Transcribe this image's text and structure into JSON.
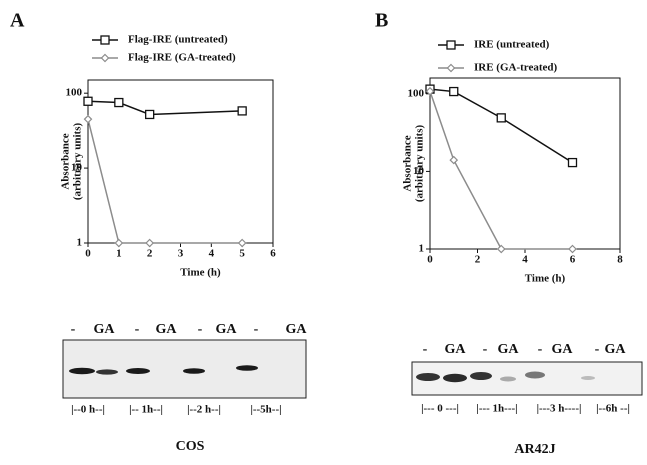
{
  "chart_data": [
    {
      "type": "line",
      "xlabel": "Time (h)",
      "ylabel": [
        "Absorbance",
        "(arbitrary units)"
      ],
      "x": [
        0,
        1,
        2,
        5
      ],
      "xlim": [
        0,
        6
      ],
      "xticks": [
        0,
        1,
        2,
        3,
        4,
        5,
        6
      ],
      "ylim": [
        1,
        150
      ],
      "yticks": [
        1,
        10,
        100
      ],
      "log_y": true,
      "series": [
        {
          "name": "Flag-IRE (untreated)",
          "color": "#111111",
          "marker": "square",
          "values": [
            78,
            75,
            52,
            58
          ]
        },
        {
          "name": "Flag-IRE (GA-treated)",
          "color": "#8c8c8c",
          "marker": "diamond",
          "values": [
            45,
            1,
            1,
            1
          ]
        }
      ]
    },
    {
      "type": "line",
      "xlabel": "Time (h)",
      "ylabel": [
        "Absorbance",
        "(arbitrary units)"
      ],
      "x": [
        0,
        1,
        3,
        6
      ],
      "xlim": [
        0,
        8
      ],
      "xticks": [
        0,
        2,
        4,
        6,
        8
      ],
      "ylim": [
        1,
        160
      ],
      "yticks": [
        1,
        10,
        100
      ],
      "log_y": true,
      "series": [
        {
          "name": "IRE (untreated)",
          "color": "#111111",
          "marker": "square",
          "values": [
            115,
            107,
            49,
            13
          ]
        },
        {
          "name": "IRE (GA-treated)",
          "color": "#8c8c8c",
          "marker": "diamond",
          "values": [
            108,
            14,
            1,
            1
          ]
        }
      ]
    }
  ],
  "panels": [
    {
      "letter": "A",
      "lanes": [
        "-",
        "GA",
        "-",
        "GA",
        "-",
        "GA",
        "-",
        "GA"
      ],
      "times": [
        "|--0 h--|",
        "|-- 1h--|",
        "|--2 h--|",
        "|--5h--|"
      ],
      "cell_line": "COS"
    },
    {
      "letter": "B",
      "lanes": [
        "-",
        "GA",
        "-",
        "GA",
        "-",
        "GA",
        "-",
        "GA"
      ],
      "times": [
        "|--- 0 ---|",
        "|--- 1h---|",
        "|---3 h----|",
        "|--6h --|"
      ],
      "cell_line": "AR42J"
    }
  ]
}
